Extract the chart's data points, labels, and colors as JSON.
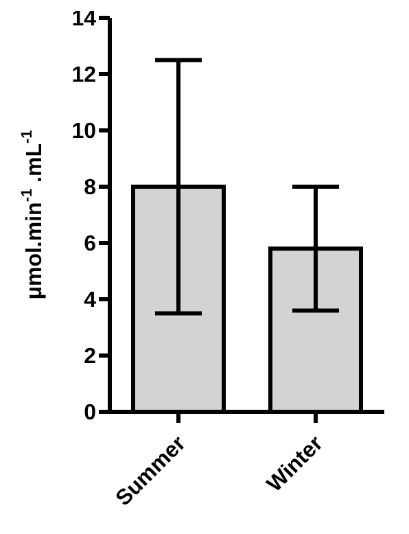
{
  "chart_data": {
    "type": "bar",
    "ylabel": "μmol.min$^{-1}$ .mL$^{-1}$",
    "categories": [
      "Summer",
      "Winter"
    ],
    "values": [
      8.0,
      5.8
    ],
    "errors": [
      4.5,
      2.2
    ],
    "color": "#d3d3d3",
    "ylim": [
      0,
      14
    ],
    "yticks": [
      0,
      2,
      4,
      6,
      8,
      10,
      12,
      14
    ],
    "grid": false,
    "legend": false
  }
}
